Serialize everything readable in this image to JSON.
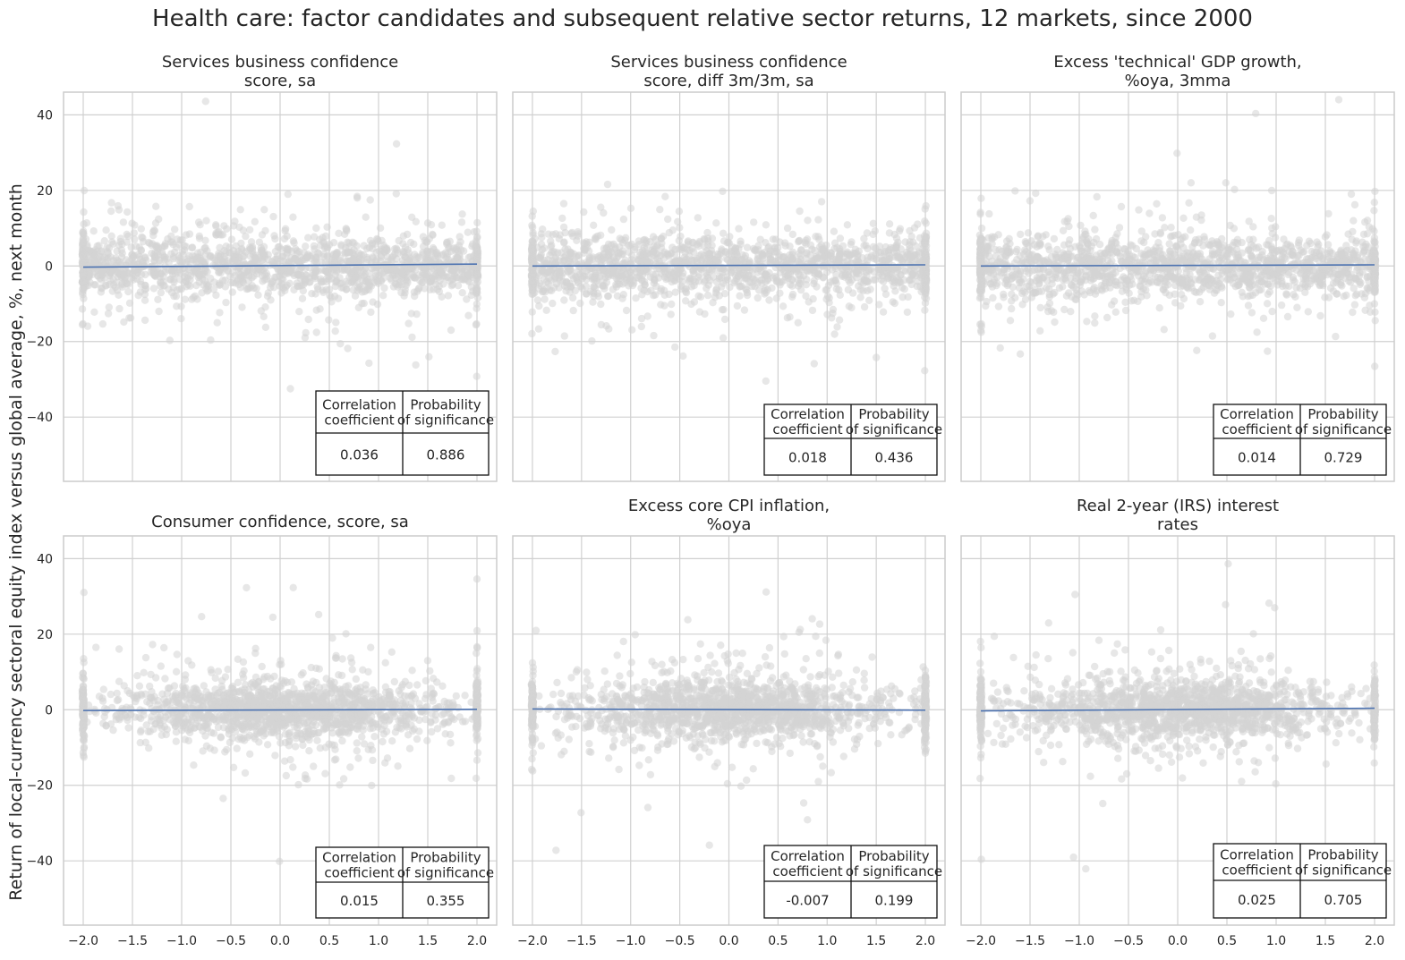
{
  "title": "Health care: factor candidates and subsequent relative sector returns, 12 markets, since 2000",
  "ylabel": "Return of local-currency sectoral equity index versus global average, %, next month",
  "colors": {
    "points": "#d3d3d3",
    "line": "#4c72b0",
    "grid": "#d0d0d0",
    "frame": "#cccccc",
    "text": "#262626",
    "table_border": "#111111"
  },
  "table_headers": [
    "Correlation\ncoefficient",
    "Probability\nof significance"
  ],
  "x_ticks": [
    "−2.0",
    "−1.5",
    "−1.0",
    "−0.5",
    "0.0",
    "0.5",
    "1.0",
    "1.5",
    "2.0"
  ],
  "y_ticks": [
    "−40",
    "−20",
    "0",
    "20",
    "40"
  ],
  "chart_data": [
    {
      "type": "scatter",
      "title": "Services business confidence\nscore, sa",
      "xlim": [
        -2.2,
        2.2
      ],
      "ylim": [
        -57,
        46
      ],
      "x_tick_values": [
        -2.0,
        -1.5,
        -1.0,
        -0.5,
        0.0,
        0.5,
        1.0,
        1.5,
        2.0
      ],
      "y_tick_values": [
        -40,
        -20,
        0,
        20,
        40
      ],
      "regression_line": {
        "x": [
          -2.0,
          2.0
        ],
        "y": [
          -0.3,
          0.5
        ]
      },
      "correlation_coefficient": "0.036",
      "probability_of_significance": "0.886"
    },
    {
      "type": "scatter",
      "title": "Services business confidence\nscore, diff 3m/3m, sa",
      "xlim": [
        -2.2,
        2.2
      ],
      "ylim": [
        -57,
        46
      ],
      "x_tick_values": [
        -2.0,
        -1.5,
        -1.0,
        -0.5,
        0.0,
        0.5,
        1.0,
        1.5,
        2.0
      ],
      "y_tick_values": [
        -40,
        -20,
        0,
        20,
        40
      ],
      "regression_line": {
        "x": [
          -2.0,
          2.0
        ],
        "y": [
          0.0,
          0.3
        ]
      },
      "correlation_coefficient": "0.018",
      "probability_of_significance": "0.436"
    },
    {
      "type": "scatter",
      "title": "Excess 'technical' GDP growth,\n%oya, 3mma",
      "xlim": [
        -2.2,
        2.2
      ],
      "ylim": [
        -57,
        46
      ],
      "x_tick_values": [
        -2.0,
        -1.5,
        -1.0,
        -0.5,
        0.0,
        0.5,
        1.0,
        1.5,
        2.0
      ],
      "y_tick_values": [
        -40,
        -20,
        0,
        20,
        40
      ],
      "regression_line": {
        "x": [
          -2.0,
          2.0
        ],
        "y": [
          0.0,
          0.3
        ]
      },
      "correlation_coefficient": "0.014",
      "probability_of_significance": "0.729"
    },
    {
      "type": "scatter",
      "title": "Consumer confidence, score, sa",
      "xlim": [
        -2.2,
        2.2
      ],
      "ylim": [
        -57,
        46
      ],
      "x_tick_values": [
        -2.0,
        -1.5,
        -1.0,
        -0.5,
        0.0,
        0.5,
        1.0,
        1.5,
        2.0
      ],
      "y_tick_values": [
        -40,
        -20,
        0,
        20,
        40
      ],
      "regression_line": {
        "x": [
          -2.0,
          2.0
        ],
        "y": [
          -0.2,
          0.1
        ]
      },
      "correlation_coefficient": "0.015",
      "probability_of_significance": "0.355"
    },
    {
      "type": "scatter",
      "title": "Excess core CPI inflation,\n%oya",
      "xlim": [
        -2.2,
        2.2
      ],
      "ylim": [
        -57,
        46
      ],
      "x_tick_values": [
        -2.0,
        -1.5,
        -1.0,
        -0.5,
        0.0,
        0.5,
        1.0,
        1.5,
        2.0
      ],
      "y_tick_values": [
        -40,
        -20,
        0,
        20,
        40
      ],
      "regression_line": {
        "x": [
          -2.0,
          2.0
        ],
        "y": [
          0.2,
          -0.1
        ]
      },
      "correlation_coefficient": "-0.007",
      "probability_of_significance": "0.199"
    },
    {
      "type": "scatter",
      "title": "Real 2-year (IRS) interest\nrates",
      "xlim": [
        -2.2,
        2.2
      ],
      "ylim": [
        -57,
        46
      ],
      "x_tick_values": [
        -2.0,
        -1.5,
        -1.0,
        -0.5,
        0.0,
        0.5,
        1.0,
        1.5,
        2.0
      ],
      "y_tick_values": [
        -40,
        -20,
        0,
        20,
        40
      ],
      "regression_line": {
        "x": [
          -2.0,
          2.0
        ],
        "y": [
          -0.3,
          0.4
        ]
      },
      "correlation_coefficient": "0.025",
      "probability_of_significance": "0.705"
    }
  ]
}
